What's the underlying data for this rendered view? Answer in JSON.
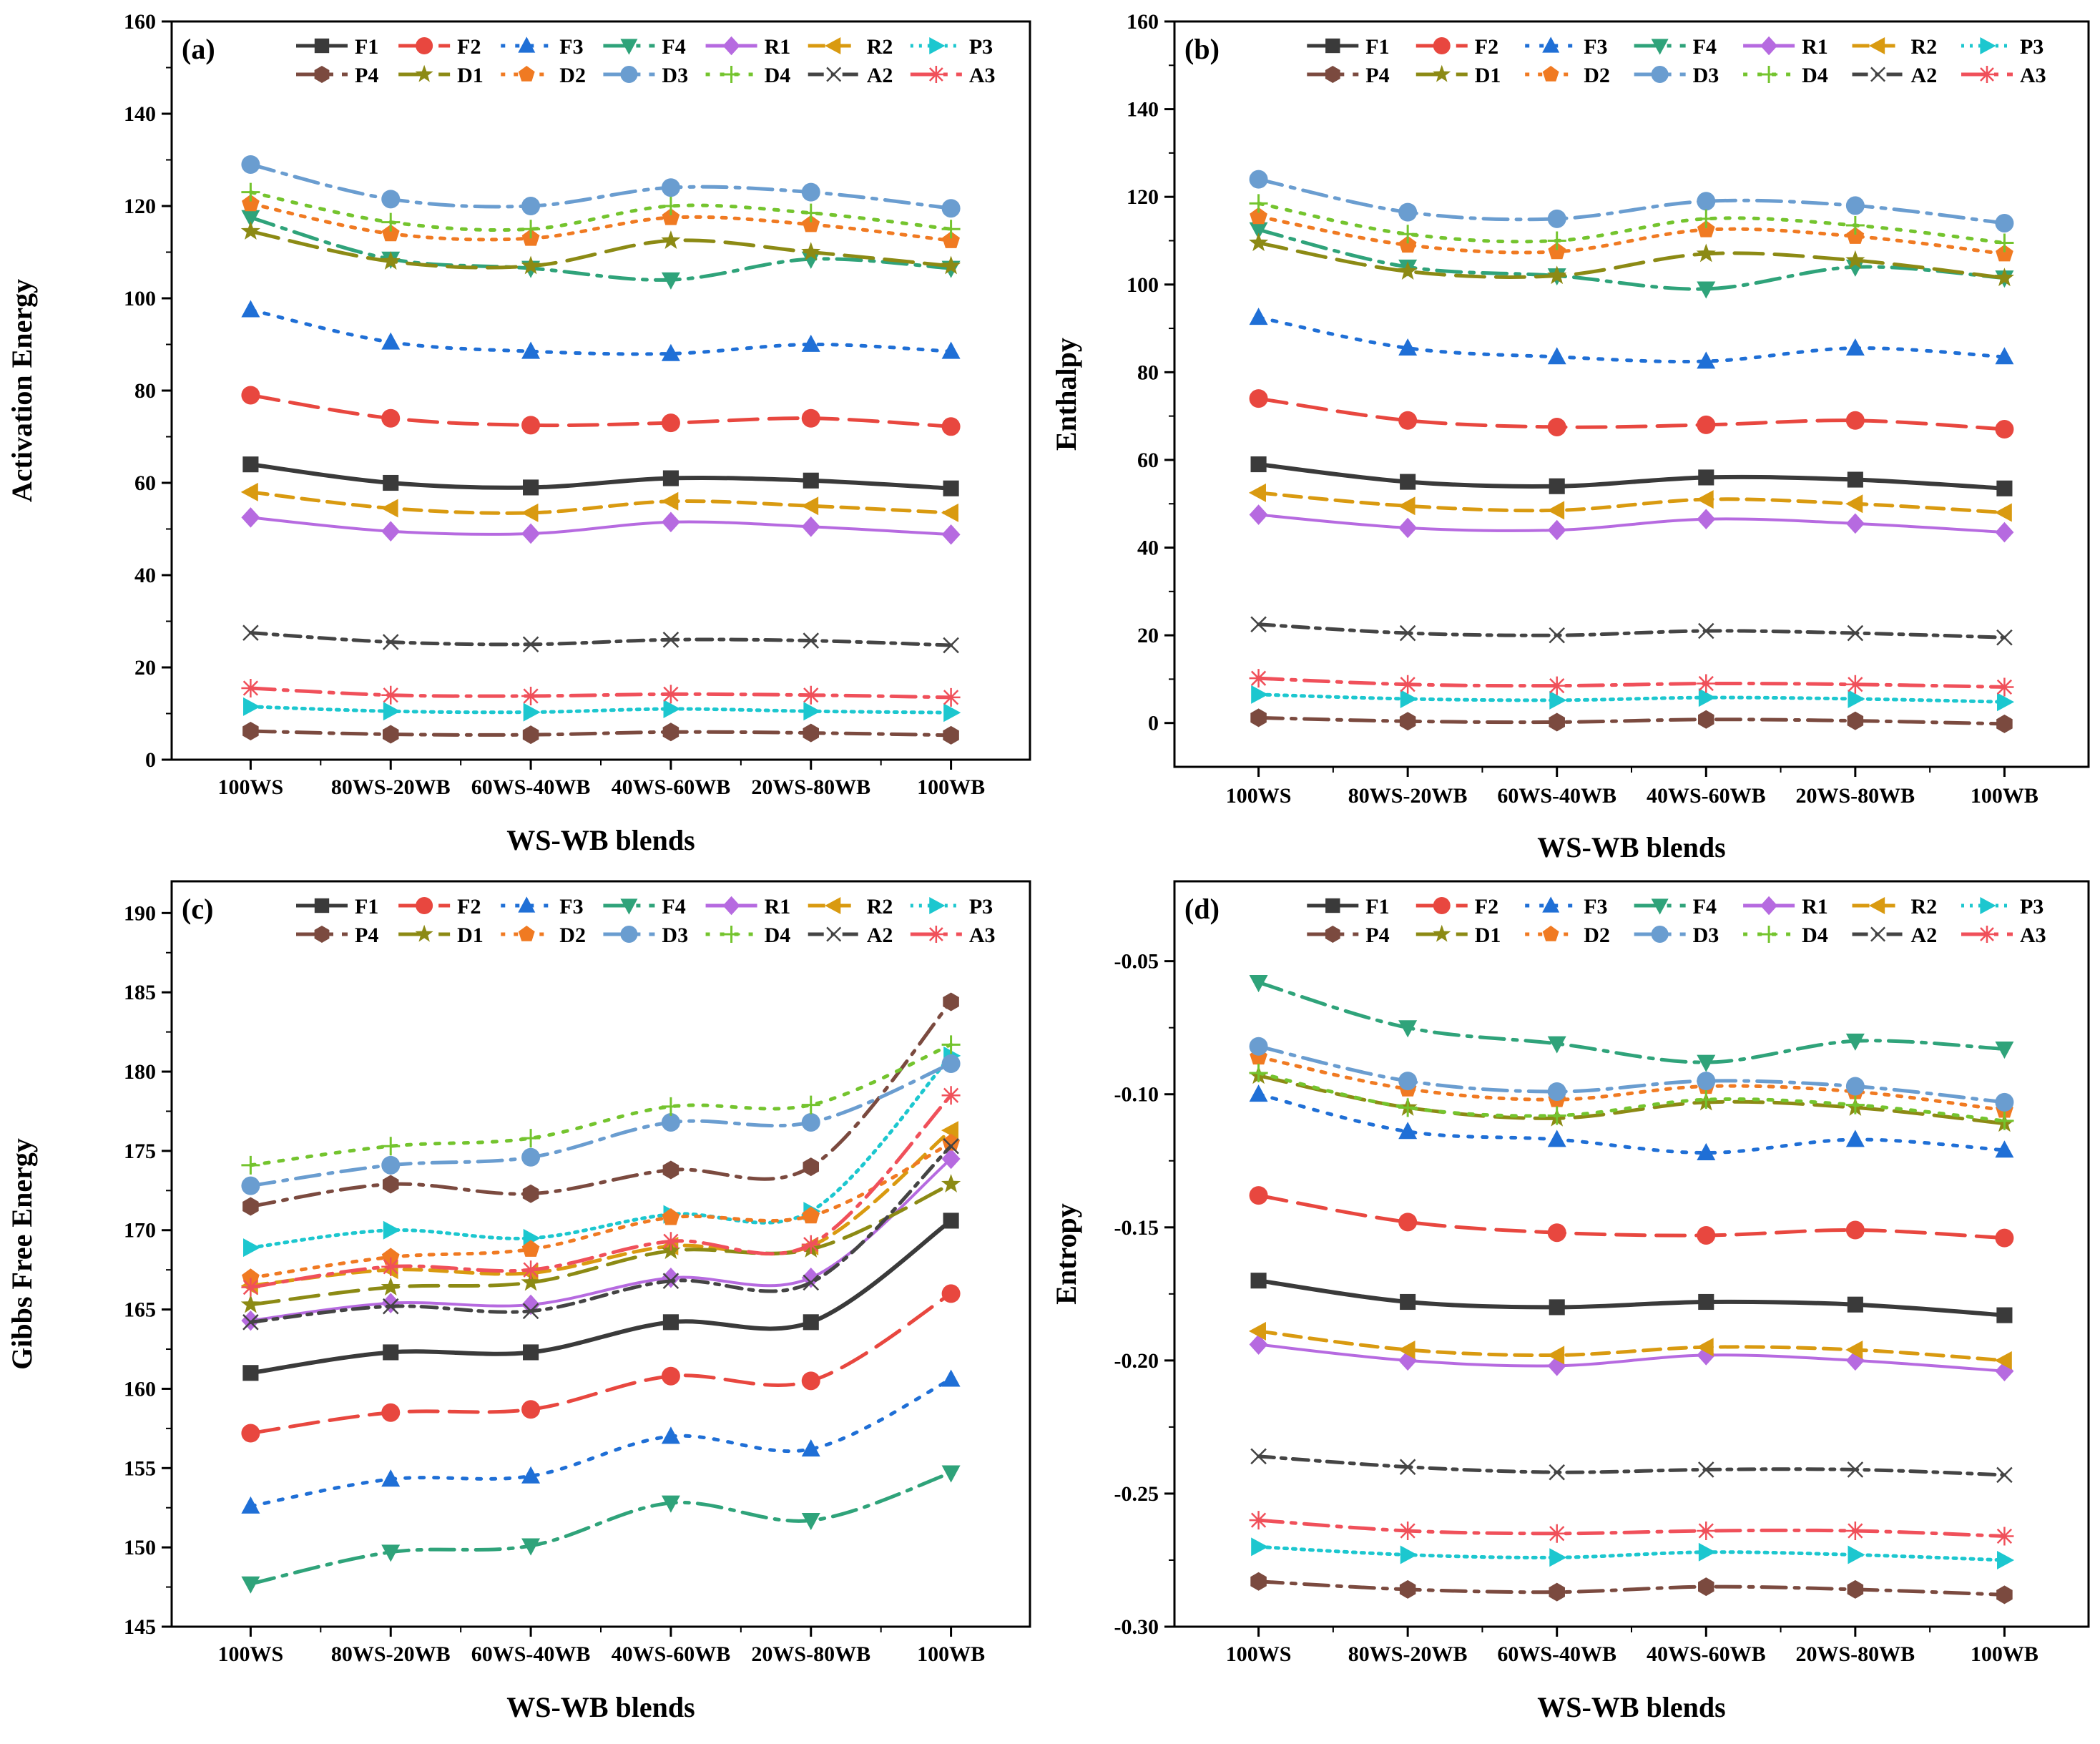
{
  "colors": {
    "F1": "#3a3a3a",
    "F2": "#e8473f",
    "F3": "#1f6fd6",
    "F4": "#2fa37a",
    "R1": "#b66ae0",
    "R2": "#d99a10",
    "P3": "#1cc7cf",
    "P4": "#7b4a3f",
    "D1": "#8c8a14",
    "D2": "#f07a22",
    "D3": "#6a9dd0",
    "D4": "#74c42e",
    "A2": "#444444",
    "A3": "#f0505a"
  },
  "markers": {
    "F1": "square",
    "F2": "circle",
    "F3": "triangle-up",
    "F4": "triangle-down",
    "R1": "diamond",
    "R2": "triangle-left",
    "P3": "triangle-right",
    "P4": "hexagon",
    "D1": "star",
    "D2": "pentagon",
    "D3": "circle",
    "D4": "plus",
    "A2": "x",
    "A3": "asterisk"
  },
  "legend_order": [
    "F1",
    "F2",
    "F3",
    "F4",
    "R1",
    "R2",
    "P3",
    "P4",
    "D1",
    "D2",
    "D3",
    "D4",
    "A2",
    "A3"
  ],
  "chart_data": [
    {
      "type": "line",
      "panel_label": "(a)",
      "title": "",
      "xlabel": "WS-WB blends",
      "ylabel": "Activation Energy",
      "categories": [
        "100WS",
        "80WS-20WB",
        "60WS-40WB",
        "40WS-60WB",
        "20WS-80WB",
        "100WB"
      ],
      "ylim": [
        0,
        160
      ],
      "yticks": [
        "0",
        "20",
        "40",
        "60",
        "80",
        "100",
        "120",
        "140",
        "160"
      ],
      "series": [
        {
          "name": "F1",
          "values": [
            64,
            60,
            59,
            61,
            60.5,
            58.8
          ]
        },
        {
          "name": "F2",
          "values": [
            79,
            74,
            72.5,
            73,
            74,
            72.2
          ]
        },
        {
          "name": "F3",
          "values": [
            97.5,
            90.5,
            88.5,
            88,
            90,
            88.5
          ]
        },
        {
          "name": "F4",
          "values": [
            117.5,
            108.5,
            106.5,
            104,
            108.5,
            106.5
          ]
        },
        {
          "name": "R1",
          "values": [
            52.5,
            49.5,
            49,
            51.5,
            50.5,
            48.8
          ]
        },
        {
          "name": "R2",
          "values": [
            58,
            54.5,
            53.5,
            56,
            55,
            53.5
          ]
        },
        {
          "name": "P3",
          "values": [
            11.5,
            10.5,
            10.3,
            11,
            10.5,
            10.2
          ]
        },
        {
          "name": "P4",
          "values": [
            6.2,
            5.5,
            5.4,
            6,
            5.8,
            5.3
          ]
        },
        {
          "name": "D1",
          "values": [
            114.5,
            108,
            107,
            112.5,
            110,
            107
          ]
        },
        {
          "name": "D2",
          "values": [
            120.5,
            114,
            113,
            117.5,
            116,
            112.5
          ]
        },
        {
          "name": "D3",
          "values": [
            129,
            121.5,
            120,
            124,
            123,
            119.5
          ]
        },
        {
          "name": "D4",
          "values": [
            123,
            116.5,
            115,
            120,
            118.5,
            115
          ]
        },
        {
          "name": "A2",
          "values": [
            27.5,
            25.5,
            25,
            26,
            25.8,
            24.8
          ]
        },
        {
          "name": "A3",
          "values": [
            15.5,
            14,
            13.8,
            14.2,
            14,
            13.5
          ]
        }
      ]
    },
    {
      "type": "line",
      "panel_label": "(b)",
      "title": "",
      "xlabel": "WS-WB blends",
      "ylabel": "Enthalpy",
      "categories": [
        "100WS",
        "80WS-20WB",
        "60WS-40WB",
        "40WS-60WB",
        "20WS-80WB",
        "100WB"
      ],
      "ylim": [
        -10,
        160
      ],
      "yticks": [
        "0",
        "20",
        "40",
        "60",
        "80",
        "100",
        "120",
        "140",
        "160"
      ],
      "series": [
        {
          "name": "F1",
          "values": [
            59,
            55,
            54,
            56,
            55.5,
            53.5
          ]
        },
        {
          "name": "F2",
          "values": [
            74,
            69,
            67.5,
            68,
            69,
            67
          ]
        },
        {
          "name": "F3",
          "values": [
            92.5,
            85.5,
            83.5,
            82.5,
            85.5,
            83.5
          ]
        },
        {
          "name": "F4",
          "values": [
            112.5,
            104,
            102,
            99,
            104,
            101.5
          ]
        },
        {
          "name": "R1",
          "values": [
            47.5,
            44.5,
            44,
            46.5,
            45.5,
            43.5
          ]
        },
        {
          "name": "R2",
          "values": [
            52.5,
            49.5,
            48.5,
            51,
            50,
            48
          ]
        },
        {
          "name": "P3",
          "values": [
            6.5,
            5.5,
            5.2,
            5.8,
            5.5,
            4.8
          ]
        },
        {
          "name": "P4",
          "values": [
            1.2,
            0.4,
            0.2,
            0.8,
            0.5,
            -0.2
          ]
        },
        {
          "name": "D1",
          "values": [
            109.5,
            103,
            102,
            107,
            105.5,
            101.5
          ]
        },
        {
          "name": "D2",
          "values": [
            115.5,
            109,
            107.5,
            112.5,
            111,
            107
          ]
        },
        {
          "name": "D3",
          "values": [
            124,
            116.5,
            115,
            119,
            118,
            114
          ]
        },
        {
          "name": "D4",
          "values": [
            118.5,
            111.5,
            110,
            115,
            113.5,
            109.5
          ]
        },
        {
          "name": "A2",
          "values": [
            22.5,
            20.5,
            20,
            21,
            20.5,
            19.5
          ]
        },
        {
          "name": "A3",
          "values": [
            10.2,
            8.8,
            8.5,
            9,
            8.8,
            8.2
          ]
        }
      ]
    },
    {
      "type": "line",
      "panel_label": "(c)",
      "title": "",
      "xlabel": "WS-WB blends",
      "ylabel": "Gibbs Free Energy",
      "categories": [
        "100WS",
        "80WS-20WB",
        "60WS-40WB",
        "40WS-60WB",
        "20WS-80WB",
        "100WB"
      ],
      "ylim": [
        145,
        192
      ],
      "yticks": [
        "145",
        "150",
        "155",
        "160",
        "165",
        "170",
        "175",
        "180",
        "185",
        "190"
      ],
      "series": [
        {
          "name": "F1",
          "values": [
            161,
            162.3,
            162.3,
            164.2,
            164.2,
            170.6
          ]
        },
        {
          "name": "F2",
          "values": [
            157.2,
            158.5,
            158.7,
            160.8,
            160.5,
            166
          ]
        },
        {
          "name": "F3",
          "values": [
            152.6,
            154.3,
            154.5,
            157,
            156.2,
            160.6
          ]
        },
        {
          "name": "F4",
          "values": [
            147.7,
            149.7,
            150.1,
            152.8,
            151.7,
            154.7
          ]
        },
        {
          "name": "R1",
          "values": [
            164.3,
            165.4,
            165.3,
            167,
            167,
            174.5
          ]
        },
        {
          "name": "R2",
          "values": [
            166.5,
            167.5,
            167.3,
            169,
            169,
            176.3
          ]
        },
        {
          "name": "P3",
          "values": [
            168.9,
            170,
            169.5,
            171,
            171.2,
            181
          ]
        },
        {
          "name": "P4",
          "values": [
            171.5,
            172.9,
            172.3,
            173.8,
            174,
            184.4
          ]
        },
        {
          "name": "D1",
          "values": [
            165.3,
            166.4,
            166.7,
            168.7,
            168.8,
            172.9
          ]
        },
        {
          "name": "D2",
          "values": [
            167,
            168.3,
            168.8,
            170.8,
            170.9,
            175.5
          ]
        },
        {
          "name": "D3",
          "values": [
            172.8,
            174.1,
            174.6,
            176.8,
            176.8,
            180.5
          ]
        },
        {
          "name": "D4",
          "values": [
            174.1,
            175.3,
            175.8,
            177.8,
            177.9,
            181.7
          ]
        },
        {
          "name": "A2",
          "values": [
            164.2,
            165.2,
            164.9,
            166.8,
            166.7,
            175.3
          ]
        },
        {
          "name": "A3",
          "values": [
            166.4,
            167.7,
            167.5,
            169.3,
            169.1,
            178.5
          ]
        }
      ]
    },
    {
      "type": "line",
      "panel_label": "(d)",
      "title": "",
      "xlabel": "WS-WB blends",
      "ylabel": "Entropy",
      "categories": [
        "100WS",
        "80WS-20WB",
        "60WS-40WB",
        "40WS-60WB",
        "20WS-80WB",
        "100WB"
      ],
      "ylim": [
        -0.3,
        -0.02
      ],
      "yticks": [
        "-0.30",
        "-0.25",
        "-0.20",
        "-0.15",
        "-0.10",
        "-0.05"
      ],
      "series": [
        {
          "name": "F1",
          "values": [
            -0.17,
            -0.178,
            -0.18,
            -0.178,
            -0.179,
            -0.183
          ]
        },
        {
          "name": "F2",
          "values": [
            -0.138,
            -0.148,
            -0.152,
            -0.153,
            -0.151,
            -0.154
          ]
        },
        {
          "name": "F3",
          "values": [
            -0.1,
            -0.114,
            -0.117,
            -0.122,
            -0.117,
            -0.121
          ]
        },
        {
          "name": "F4",
          "values": [
            -0.058,
            -0.075,
            -0.081,
            -0.088,
            -0.08,
            -0.083
          ]
        },
        {
          "name": "R1",
          "values": [
            -0.194,
            -0.2,
            -0.202,
            -0.198,
            -0.2,
            -0.204
          ]
        },
        {
          "name": "R2",
          "values": [
            -0.189,
            -0.196,
            -0.198,
            -0.195,
            -0.196,
            -0.2
          ]
        },
        {
          "name": "P3",
          "values": [
            -0.27,
            -0.273,
            -0.274,
            -0.272,
            -0.273,
            -0.275
          ]
        },
        {
          "name": "P4",
          "values": [
            -0.283,
            -0.286,
            -0.287,
            -0.285,
            -0.286,
            -0.288
          ]
        },
        {
          "name": "D1",
          "values": [
            -0.093,
            -0.105,
            -0.109,
            -0.103,
            -0.105,
            -0.111
          ]
        },
        {
          "name": "D2",
          "values": [
            -0.086,
            -0.098,
            -0.102,
            -0.097,
            -0.099,
            -0.106
          ]
        },
        {
          "name": "D3",
          "values": [
            -0.082,
            -0.095,
            -0.099,
            -0.095,
            -0.097,
            -0.103
          ]
        },
        {
          "name": "D4",
          "values": [
            -0.092,
            -0.105,
            -0.108,
            -0.102,
            -0.104,
            -0.11
          ]
        },
        {
          "name": "A2",
          "values": [
            -0.236,
            -0.24,
            -0.242,
            -0.241,
            -0.241,
            -0.243
          ]
        },
        {
          "name": "A3",
          "values": [
            -0.26,
            -0.264,
            -0.265,
            -0.264,
            -0.264,
            -0.266
          ]
        }
      ]
    }
  ]
}
